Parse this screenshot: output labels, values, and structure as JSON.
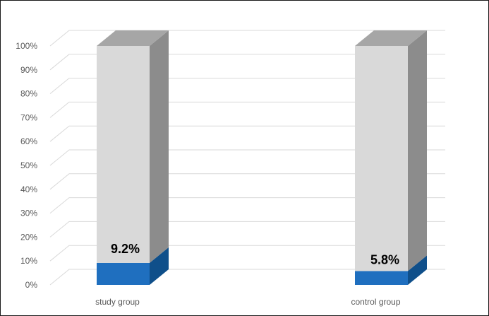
{
  "chart_data": {
    "type": "bar",
    "stacked": true,
    "percent_stacked": true,
    "three_d": true,
    "categories": [
      "study group",
      "control group"
    ],
    "series": [
      {
        "values": [
          9.2,
          5.8
        ],
        "color": "#1f6fbf"
      },
      {
        "values": [
          90.8,
          94.2
        ],
        "color": "#d9d9d9"
      }
    ],
    "data_labels": [
      "9.2%",
      "5.8%"
    ],
    "y_ticks": [
      "0%",
      "10%",
      "20%",
      "30%",
      "40%",
      "50%",
      "60%",
      "70%",
      "80%",
      "90%",
      "100%"
    ],
    "ylim": [
      0,
      100
    ],
    "grid": true,
    "legend": "none",
    "title": "",
    "xlabel": "",
    "ylabel": ""
  }
}
